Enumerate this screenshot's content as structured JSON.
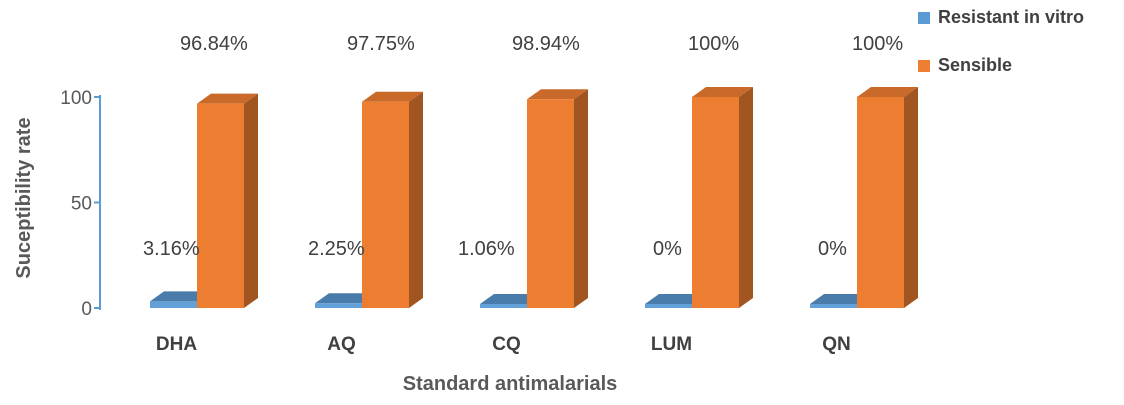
{
  "chart_data": {
    "type": "bar",
    "categories": [
      "DHA",
      "AQ",
      "CQ",
      "LUM",
      "QN"
    ],
    "series": [
      {
        "name": "Resistant in vitro",
        "values": [
          3.16,
          2.25,
          1.06,
          0,
          0
        ],
        "labels": [
          "3.16%",
          "2.25%",
          "1.06%",
          "0%",
          "0%"
        ],
        "color": "#5B9BD5"
      },
      {
        "name": "Sensible",
        "values": [
          96.84,
          97.75,
          98.94,
          100,
          100
        ],
        "labels": [
          "96.84%",
          "97.75%",
          "98.94%",
          "100%",
          "100%"
        ],
        "color": "#ED7D31"
      }
    ],
    "xlabel": "Standard antimalarials",
    "ylabel": "Suceptibility rate",
    "yticks": [
      0,
      50,
      100
    ],
    "ylim": [
      0,
      100
    ],
    "grid": false,
    "legend_position": "top-right",
    "style": "3d-column"
  }
}
